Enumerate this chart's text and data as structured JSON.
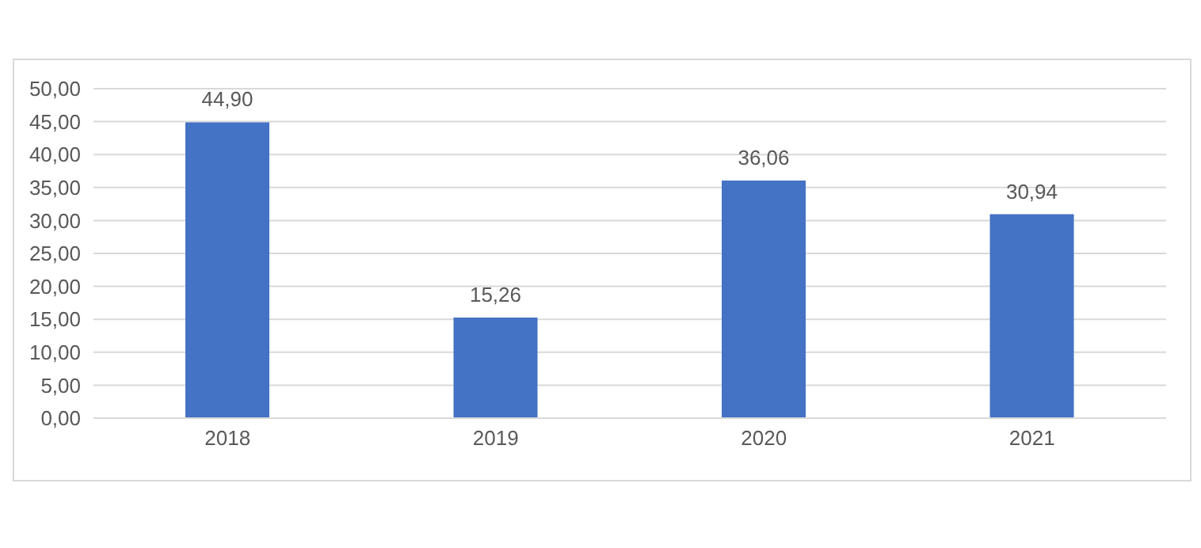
{
  "chart_data": {
    "type": "bar",
    "categories": [
      "2018",
      "2019",
      "2020",
      "2021"
    ],
    "values": [
      44.9,
      15.26,
      36.06,
      30.94
    ],
    "value_labels": [
      "44,90",
      "15,26",
      "36,06",
      "30,94"
    ],
    "color": "#4472c4",
    "ylim": [
      0,
      50
    ],
    "yticks": [
      {
        "value": 0,
        "label": "0,00"
      },
      {
        "value": 5,
        "label": "5,00"
      },
      {
        "value": 10,
        "label": "10,00"
      },
      {
        "value": 15,
        "label": "15,00"
      },
      {
        "value": 20,
        "label": "20,00"
      },
      {
        "value": 25,
        "label": "25,00"
      },
      {
        "value": 30,
        "label": "30,00"
      },
      {
        "value": 35,
        "label": "35,00"
      },
      {
        "value": 40,
        "label": "40,00"
      },
      {
        "value": 45,
        "label": "45,00"
      },
      {
        "value": 50,
        "label": "50,00"
      }
    ],
    "grid": "y",
    "legend": false
  }
}
